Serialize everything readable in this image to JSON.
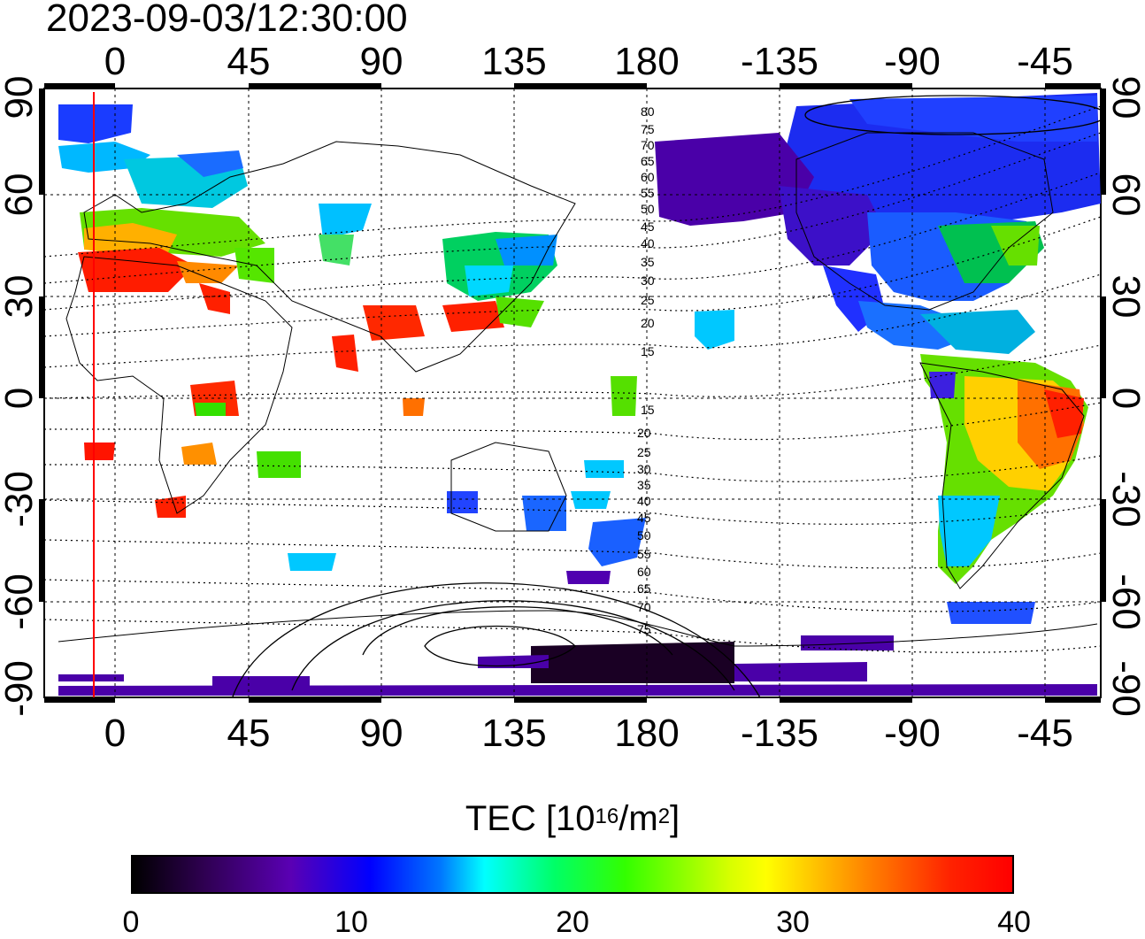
{
  "title": "2023-09-03/12:30:00",
  "map": {
    "lon_ticks": [
      "0",
      "45",
      "90",
      "135",
      "180",
      "-135",
      "-90",
      "-45"
    ],
    "lat_ticks": [
      "90",
      "60",
      "30",
      "0",
      "-30",
      "-60",
      "-90"
    ],
    "contour_labels_north": [
      "80",
      "75",
      "70",
      "65",
      "60",
      "55",
      "50",
      "45",
      "40",
      "35",
      "30",
      "25",
      "20",
      "15"
    ],
    "contour_labels_south": [
      "15",
      "20",
      "25",
      "30",
      "35",
      "40",
      "45",
      "50",
      "55",
      "60",
      "65",
      "70",
      "75"
    ],
    "red_line_color": "#ff0000"
  },
  "colorbar": {
    "label_main": "TEC  [10",
    "label_exp1": "16",
    "label_mid": "/m",
    "label_exp2": "2",
    "label_end": "]",
    "ticks": [
      "0",
      "10",
      "20",
      "30",
      "40"
    ]
  },
  "chart_data": {
    "type": "heatmap",
    "title": "2023-09-03/12:30:00",
    "xticks": [
      0,
      45,
      90,
      135,
      180,
      -135,
      -90,
      -45
    ],
    "yticks": [
      90,
      60,
      30,
      0,
      -30,
      -60,
      -90
    ],
    "colorbar_range": [
      0,
      40
    ],
    "colorbar_ticks": [
      0,
      10,
      20,
      30,
      40
    ],
    "colorbar_label": "TEC [10^16/m^2]"
  }
}
